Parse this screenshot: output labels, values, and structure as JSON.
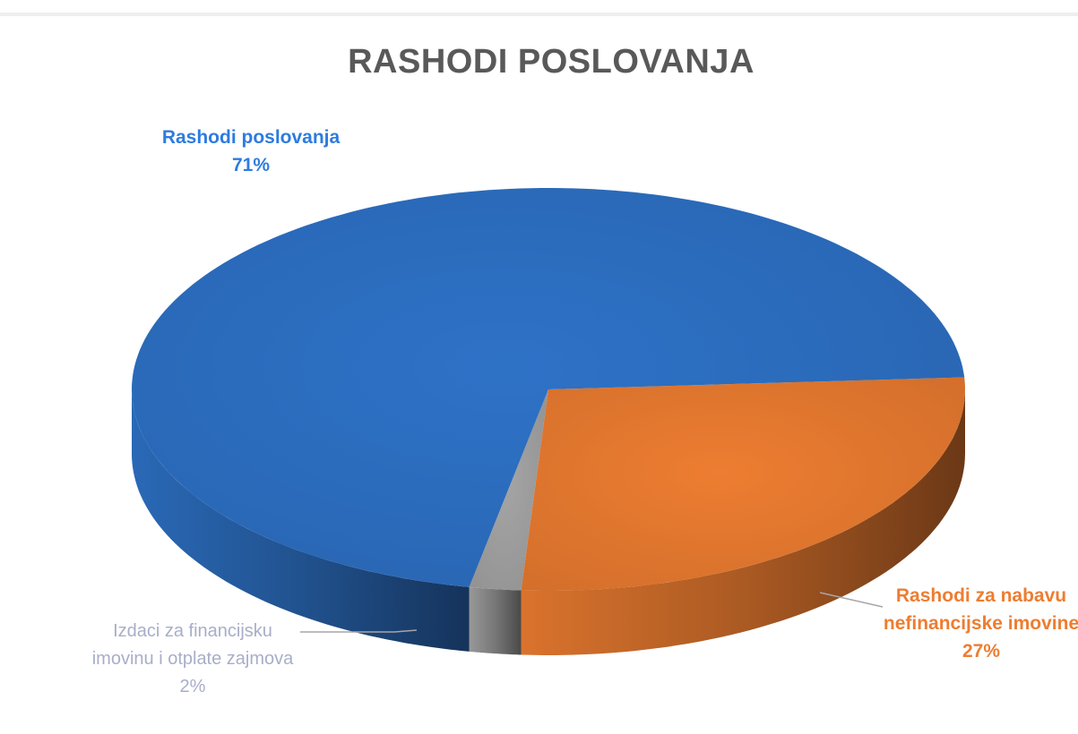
{
  "chart_data": {
    "type": "pie",
    "title": "RASHODI POSLOVANJA",
    "slices": [
      {
        "label": "Rashodi poslovanja",
        "value": 71,
        "value_label": "71%",
        "color": "#2E72C7"
      },
      {
        "label": "Rashodi za nabavu nefinancijske imovine",
        "value": 27,
        "value_label": "27%",
        "color": "#ED7D31"
      },
      {
        "label": "Izdaci za financijsku imovinu i otplate zajmova",
        "value": 2,
        "value_label": "2%",
        "color": "#A5A5A5"
      }
    ],
    "label_colors": [
      "#2E7BE0",
      "#ED7D31",
      "#A8AEC8"
    ],
    "legend": "none",
    "style": "3d"
  }
}
